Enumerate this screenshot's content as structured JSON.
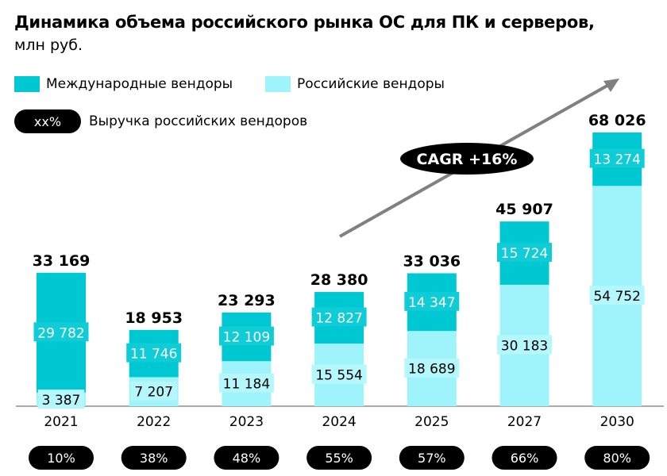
{
  "chart_data": {
    "type": "bar",
    "stacked": true,
    "title": "Динамика объема российского рынка ОС для ПК и серверов,",
    "subtitle": "млн руб.",
    "categories": [
      "2021",
      "2022",
      "2023",
      "2024",
      "2025",
      "2027",
      "2030"
    ],
    "series": [
      {
        "name": "Российские вендоры",
        "color": "#9ff3fa",
        "values": [
          3387,
          7207,
          11184,
          15554,
          18689,
          30183,
          54752
        ]
      },
      {
        "name": "Международные вендоры",
        "color": "#00c8d2",
        "values": [
          29782,
          11746,
          12109,
          12827,
          14347,
          15724,
          13274
        ]
      }
    ],
    "totals": [
      "33 169",
      "18 953",
      "23 293",
      "28 380",
      "33 036",
      "45 907",
      "68 026"
    ],
    "segment_labels": {
      "russian": [
        "3 387",
        "7 207",
        "11 184",
        "15 554",
        "18 689",
        "30 183",
        "54 752"
      ],
      "international": [
        "29 782",
        "11 746",
        "12 109",
        "12 827",
        "14 347",
        "15 724",
        "13 274"
      ]
    },
    "russian_share": [
      "10%",
      "38%",
      "48%",
      "55%",
      "57%",
      "66%",
      "80%"
    ],
    "share_legend_pill": "xx%",
    "share_legend_label": "Выручка российских вендоров",
    "cagr_label": "CAGR +16%",
    "ylim": [
      0,
      70000
    ]
  }
}
